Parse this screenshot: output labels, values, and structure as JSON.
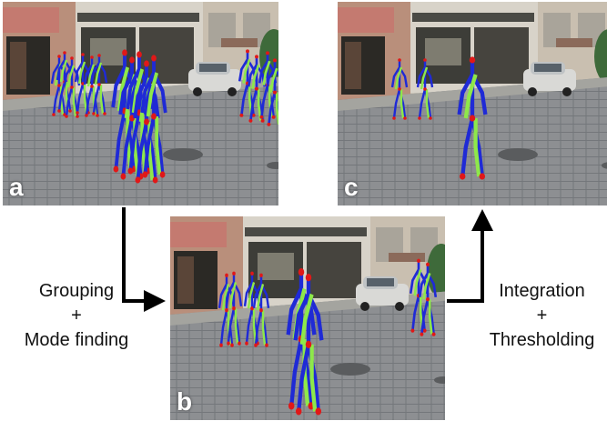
{
  "panels": {
    "a": {
      "letter": "a"
    },
    "b": {
      "letter": "b"
    },
    "c": {
      "letter": "c"
    }
  },
  "steps": {
    "left": {
      "line1": "Grouping",
      "line2": "+",
      "line3": "Mode finding"
    },
    "right": {
      "line1": "Integration",
      "line2": "+",
      "line3": "Thresholding"
    }
  },
  "colors": {
    "skeleton_right": "#8ee84a",
    "skeleton_left": "#1f2ad6",
    "joint": "#e01818",
    "arrow": "#000000",
    "panel_letter": "#ffffff"
  },
  "icons": {
    "flow": "arrow"
  }
}
